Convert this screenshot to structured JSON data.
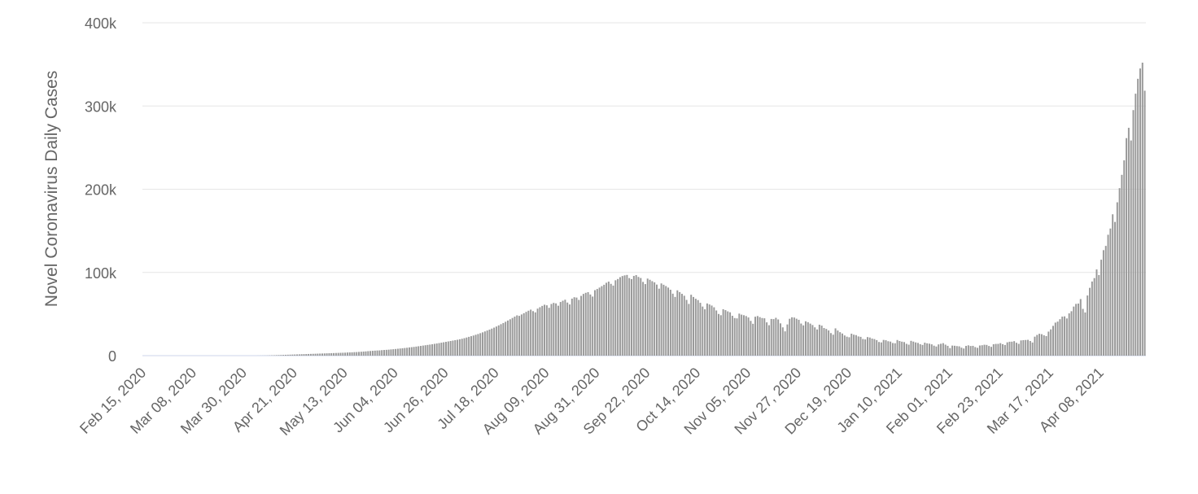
{
  "chart_data": {
    "type": "bar",
    "y_axis_label": "Novel Coronavirus Daily Cases",
    "color": "#999999",
    "grid": true,
    "ylim": [
      0,
      400000
    ],
    "yticks": [
      0,
      {
        "value": 100000,
        "label": "100k"
      },
      {
        "value": 200000,
        "label": "200k"
      },
      {
        "value": 300000,
        "label": "300k"
      },
      {
        "value": 400000,
        "label": "400k"
      }
    ],
    "categories": [
      "Feb 15, 2020",
      null,
      null,
      null,
      null,
      null,
      null,
      null,
      null,
      null,
      null,
      null,
      null,
      null,
      null,
      null,
      null,
      null,
      null,
      null,
      null,
      null,
      "Mar 08, 2020",
      null,
      null,
      null,
      null,
      null,
      null,
      null,
      null,
      null,
      null,
      null,
      null,
      null,
      null,
      null,
      null,
      null,
      null,
      null,
      null,
      null,
      "Mar 30, 2020",
      null,
      null,
      null,
      null,
      null,
      null,
      null,
      null,
      null,
      null,
      null,
      null,
      null,
      null,
      null,
      null,
      null,
      null,
      null,
      null,
      null,
      "Apr 21, 2020",
      null,
      null,
      null,
      null,
      null,
      null,
      null,
      null,
      null,
      null,
      null,
      null,
      null,
      null,
      null,
      null,
      null,
      null,
      null,
      null,
      null,
      "May 13, 2020",
      null,
      null,
      null,
      null,
      null,
      null,
      null,
      null,
      null,
      null,
      null,
      null,
      null,
      null,
      null,
      null,
      null,
      null,
      null,
      null,
      null,
      "Jun 04, 2020",
      null,
      null,
      null,
      null,
      null,
      null,
      null,
      null,
      null,
      null,
      null,
      null,
      null,
      null,
      null,
      null,
      null,
      null,
      null,
      null,
      null,
      "Jun 26, 2020",
      null,
      null,
      null,
      null,
      null,
      null,
      null,
      null,
      null,
      null,
      null,
      null,
      null,
      null,
      null,
      null,
      null,
      null,
      null,
      null,
      null,
      "Jul 18, 2020",
      null,
      null,
      null,
      null,
      null,
      null,
      null,
      null,
      null,
      null,
      null,
      null,
      null,
      null,
      null,
      null,
      null,
      null,
      null,
      null,
      null,
      "Aug 09, 2020",
      null,
      null,
      null,
      null,
      null,
      null,
      null,
      null,
      null,
      null,
      null,
      null,
      null,
      null,
      null,
      null,
      null,
      null,
      null,
      null,
      null,
      "Aug 31, 2020",
      null,
      null,
      null,
      null,
      null,
      null,
      null,
      null,
      null,
      null,
      null,
      null,
      null,
      null,
      null,
      null,
      null,
      null,
      null,
      null,
      null,
      "Sep 22, 2020",
      null,
      null,
      null,
      null,
      null,
      null,
      null,
      null,
      null,
      null,
      null,
      null,
      null,
      null,
      null,
      null,
      null,
      null,
      null,
      null,
      null,
      "Oct 14, 2020",
      null,
      null,
      null,
      null,
      null,
      null,
      null,
      null,
      null,
      null,
      null,
      null,
      null,
      null,
      null,
      null,
      null,
      null,
      null,
      null,
      null,
      "Nov 05, 2020",
      null,
      null,
      null,
      null,
      null,
      null,
      null,
      null,
      null,
      null,
      null,
      null,
      null,
      null,
      null,
      null,
      null,
      null,
      null,
      null,
      null,
      "Nov 27, 2020",
      null,
      null,
      null,
      null,
      null,
      null,
      null,
      null,
      null,
      null,
      null,
      null,
      null,
      null,
      null,
      null,
      null,
      null,
      null,
      null,
      null,
      "Dec 19, 2020",
      null,
      null,
      null,
      null,
      null,
      null,
      null,
      null,
      null,
      null,
      null,
      null,
      null,
      null,
      null,
      null,
      null,
      null,
      null,
      null,
      null,
      "Jan 10, 2021",
      null,
      null,
      null,
      null,
      null,
      null,
      null,
      null,
      null,
      null,
      null,
      null,
      null,
      null,
      null,
      null,
      null,
      null,
      null,
      null,
      null,
      "Feb 01, 2021",
      null,
      null,
      null,
      null,
      null,
      null,
      null,
      null,
      null,
      null,
      null,
      null,
      null,
      null,
      null,
      null,
      null,
      null,
      null,
      null,
      null,
      "Feb 23, 2021",
      null,
      null,
      null,
      null,
      null,
      null,
      null,
      null,
      null,
      null,
      null,
      null,
      null,
      null,
      null,
      null,
      null,
      null,
      null,
      null,
      null,
      "Mar 17, 2021",
      null,
      null,
      null,
      null,
      null,
      null,
      null,
      null,
      null,
      null,
      null,
      null,
      null,
      null,
      null,
      null,
      null,
      null,
      null,
      null,
      null,
      "Apr 08, 2021",
      null,
      null,
      null,
      null,
      null,
      null,
      null,
      null,
      null,
      null,
      null,
      null,
      null,
      null,
      null,
      null,
      null,
      null,
      null
    ],
    "values": [
      0,
      0,
      0,
      0,
      0,
      0,
      0,
      0,
      0,
      0,
      0,
      0,
      0,
      0,
      0,
      0,
      0,
      0,
      0,
      0,
      0,
      0,
      0,
      0,
      0,
      0,
      0,
      0,
      0,
      0,
      0,
      0,
      0,
      0,
      0,
      0,
      0,
      0,
      0,
      0,
      0,
      0,
      0,
      0,
      0,
      0,
      0,
      0,
      0,
      0,
      50,
      80,
      100,
      150,
      200,
      300,
      400,
      500,
      600,
      700,
      800,
      900,
      1000,
      1100,
      1200,
      1300,
      1400,
      1500,
      1600,
      1700,
      1800,
      1900,
      2000,
      2100,
      2200,
      2300,
      2400,
      2500,
      2600,
      2700,
      2800,
      2900,
      3000,
      3100,
      3200,
      3300,
      3400,
      3500,
      3600,
      3800,
      3900,
      4000,
      4200,
      4300,
      4500,
      4700,
      4900,
      5100,
      5400,
      5600,
      5800,
      6000,
      6200,
      6300,
      6600,
      6800,
      7000,
      7200,
      7500,
      7700,
      8000,
      8300,
      8600,
      8900,
      9200,
      9500,
      9900,
      10200,
      10500,
      10900,
      11300,
      11700,
      12100,
      12500,
      12900,
      13300,
      13700,
      14200,
      14600,
      15100,
      15600,
      16100,
      16600,
      17100,
      17600,
      18100,
      18600,
      19100,
      19700,
      20300,
      21000,
      21800,
      22600,
      23400,
      24200,
      25100,
      26000,
      27000,
      28000,
      29100,
      30200,
      31300,
      32500,
      33700,
      35000,
      36400,
      37800,
      39200,
      40700,
      42200,
      43700,
      45300,
      46900,
      48400,
      47800,
      49500,
      51000,
      52600,
      54000,
      55300,
      53500,
      52000,
      56500,
      58200,
      59800,
      61200,
      60500,
      57500,
      62100,
      63400,
      62800,
      60000,
      64500,
      66000,
      67200,
      63800,
      61500,
      68500,
      70200,
      69800,
      67000,
      71800,
      74200,
      75500,
      76300,
      73500,
      71000,
      78700,
      80100,
      81800,
      83500,
      85200,
      87600,
      89000,
      86300,
      84200,
      90600,
      92100,
      94300,
      95700,
      96500,
      97000,
      93200,
      92000,
      95800,
      96800,
      94600,
      93300,
      88600,
      86000,
      92600,
      91200,
      89500,
      88100,
      85400,
      80500,
      86800,
      85200,
      83600,
      81800,
      79200,
      74500,
      70600,
      78500,
      76400,
      74300,
      72000,
      67000,
      62200,
      73200,
      70500,
      68400,
      66800,
      63500,
      59000,
      55700,
      62700,
      61500,
      60200,
      58100,
      54300,
      50100,
      48600,
      55800,
      54700,
      53200,
      52100,
      47900,
      45200,
      44800,
      50500,
      49300,
      48600,
      47600,
      45900,
      41800,
      38300,
      46800,
      47600,
      46300,
      45200,
      44900,
      40000,
      36600,
      44100,
      43900,
      45500,
      43500,
      38800,
      34000,
      29200,
      37500,
      44300,
      46100,
      45800,
      44400,
      43100,
      38600,
      36400,
      41300,
      40200,
      38500,
      36800,
      34000,
      31500,
      37200,
      36100,
      33200,
      32100,
      30300,
      27100,
      25200,
      32800,
      30200,
      28200,
      26600,
      24300,
      22800,
      22100,
      26400,
      25200,
      24700,
      23100,
      22600,
      20000,
      19500,
      22300,
      21800,
      20500,
      19900,
      18700,
      16400,
      15900,
      18900,
      18500,
      17300,
      16900,
      15200,
      14900,
      18800,
      17600,
      16800,
      16300,
      14200,
      13200,
      17800,
      16900,
      15900,
      15300,
      13800,
      12900,
      15600,
      14800,
      14400,
      13600,
      12000,
      11000,
      13500,
      14300,
      15000,
      13200,
      11800,
      9100,
      12100,
      11900,
      11500,
      11200,
      9600,
      8600,
      11700,
      12400,
      11600,
      11800,
      10300,
      9400,
      12200,
      12500,
      13100,
      12900,
      11600,
      10600,
      13700,
      14100,
      14200,
      15000,
      13800,
      12800,
      16000,
      16700,
      16800,
      17400,
      15500,
      14200,
      18300,
      18600,
      18800,
      19000,
      17600,
      15800,
      22800,
      24900,
      26300,
      25800,
      24500,
      23500,
      28900,
      31600,
      35800,
      39700,
      40900,
      43800,
      46900,
      47200,
      44700,
      50800,
      53400,
      59000,
      62200,
      62600,
      68000,
      56200,
      51900,
      72300,
      81500,
      89100,
      93200,
      103600,
      96900,
      115300,
      126800,
      131900,
      145300,
      152800,
      169900,
      160700,
      184300,
      201300,
      217300,
      234700,
      261400,
      273800,
      258600,
      295100,
      314800,
      332700,
      345100,
      352100,
      318400
    ]
  }
}
